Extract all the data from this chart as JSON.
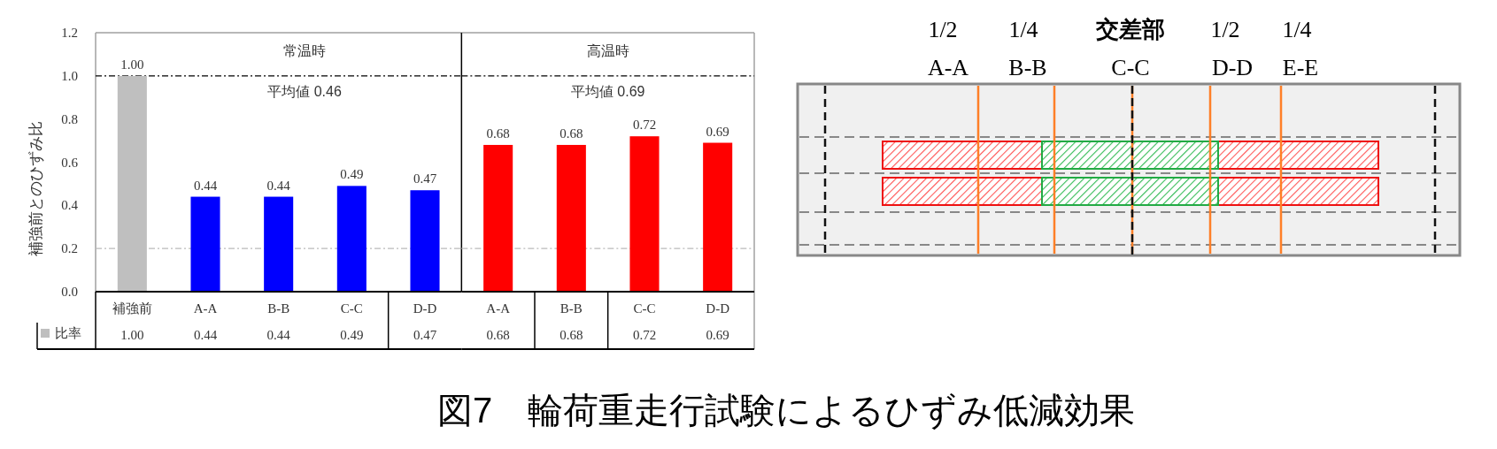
{
  "chart_data": [
    {
      "type": "bar",
      "ylabel": "補強前とのひずみ比",
      "categories": [
        "補強前",
        "A-A",
        "B-B",
        "C-C",
        "D-D"
      ],
      "series": [
        {
          "name": "比率",
          "color": "#bfbfbf",
          "colors": [
            "#bfbfbf",
            "#0000ff",
            "#0000ff",
            "#0000ff",
            "#0000ff"
          ],
          "values": [
            1.0,
            0.44,
            0.44,
            0.49,
            0.47
          ],
          "value_labels": [
            "1.00",
            "0.44",
            "0.44",
            "0.49",
            "0.47"
          ]
        }
      ],
      "ylim": [
        0,
        1.2
      ],
      "yticks": [
        {
          "value": 0,
          "label": "0.0"
        },
        0.2,
        0.4,
        0.6,
        0.8,
        {
          "value": 1,
          "label": "1.0"
        },
        1.2
      ],
      "ref_lines": [
        {
          "axis": "y",
          "value": 1,
          "color": "#000000",
          "line_style": "dashed"
        },
        {
          "axis": "y",
          "value": 0.2,
          "color": "#bbbbbb",
          "line_style": "dashed"
        }
      ],
      "legend": "bottom left",
      "annotations": [
        "常温時",
        "平均値 0.46"
      ]
    },
    {
      "type": "bar",
      "categories": [
        "A-A",
        "B-B",
        "C-C",
        "D-D"
      ],
      "series": [
        {
          "color": "#ff0000",
          "values": [
            0.68,
            0.68,
            0.72,
            0.69
          ],
          "value_labels": [
            "0.68",
            "0.68",
            "0.72",
            "0.69"
          ]
        }
      ],
      "ylim": [
        0,
        1.2
      ],
      "tick_labels": "x",
      "ref_lines": [
        {
          "axis": "y",
          "value": 1,
          "color": "#000000",
          "line_style": "dashed"
        },
        {
          "axis": "y",
          "value": 0.2,
          "color": "#bbbbbb",
          "line_style": "dashed"
        }
      ],
      "annotations": [
        "高温時",
        "平均値 0.69"
      ]
    },
    {
      "type": "other",
      "annotations": [
        "1/2",
        "A-A",
        "1/4",
        "B-B",
        "交差部",
        "C-C",
        "1/2",
        "D-D",
        "1/4",
        "E-E",
        "図7　輪荷重走行試験によるひずみ低減効果"
      ]
    }
  ]
}
